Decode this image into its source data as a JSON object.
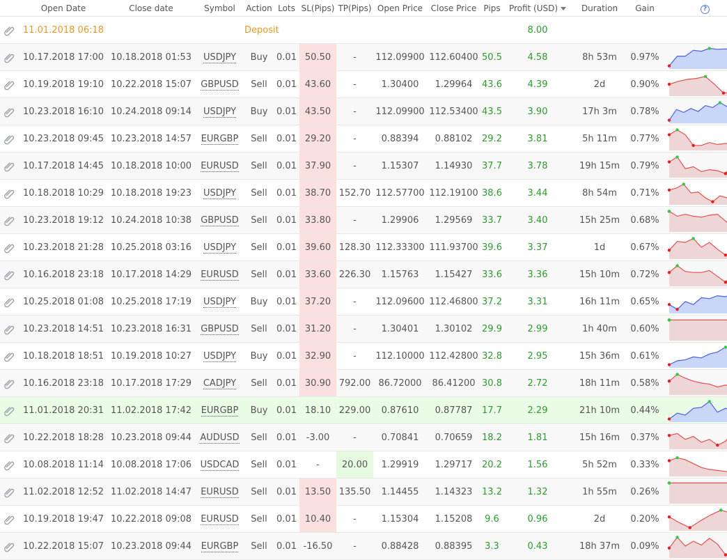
{
  "headers": {
    "open_date": "Open Date",
    "close_date": "Close date",
    "symbol": "Symbol",
    "action": "Action",
    "lots": "Lots",
    "sl": "SL(Pips)",
    "tp": "TP(Pips)",
    "open_price": "Open Price",
    "close_price": "Close Price",
    "pips": "Pips",
    "profit": "Profit (USD)",
    "duration": "Duration",
    "gain": "Gain",
    "help": "?"
  },
  "deposit": {
    "date": "11.01.2018 06:18",
    "action": "Deposit",
    "profit": "8.00"
  },
  "trades": [
    {
      "open": "10.17.2018 17:00",
      "close": "10.18.2018 01:53",
      "symbol": "USDJPY",
      "action": "Buy",
      "lots": "0.01",
      "sl": "50.50",
      "tp": "-",
      "op": "112.09900",
      "cp": "112.60400",
      "pips": "50.5",
      "profit": "4.58",
      "dur": "8h 53m",
      "gain": "0.97%",
      "spark": [
        0.05,
        0.55,
        0.55,
        0.85,
        0.8,
        0.95,
        0.9,
        0.92,
        0.88,
        0.88
      ],
      "color": "blue"
    },
    {
      "open": "10.19.2018 19:10",
      "close": "10.22.2018 15:07",
      "symbol": "GBPUSD",
      "action": "Sell",
      "lots": "0.01",
      "sl": "43.60",
      "tp": "-",
      "op": "1.30400",
      "cp": "1.29964",
      "pips": "43.6",
      "profit": "4.39",
      "dur": "2d",
      "gain": "0.90%",
      "spark": [
        0.5,
        0.65,
        0.75,
        0.8,
        0.9,
        0.5,
        0.05,
        0.1,
        0.15
      ],
      "color": "red"
    },
    {
      "open": "10.23.2018 16:10",
      "close": "10.24.2018 09:14",
      "symbol": "USDJPY",
      "action": "Buy",
      "lots": "0.01",
      "sl": "43.50",
      "tp": "-",
      "op": "112.09900",
      "cp": "112.53400",
      "pips": "43.5",
      "profit": "3.90",
      "dur": "17h 3m",
      "gain": "0.78%",
      "spark": [
        0.05,
        0.6,
        0.45,
        0.65,
        0.5,
        0.8,
        0.7,
        0.95,
        0.75,
        0.75,
        0.75
      ],
      "color": "blue"
    },
    {
      "open": "10.23.2018 09:45",
      "close": "10.23.2018 14:57",
      "symbol": "EURGBP",
      "action": "Sell",
      "lots": "0.01",
      "sl": "29.20",
      "tp": "-",
      "op": "0.88394",
      "cp": "0.88102",
      "pips": "29.2",
      "profit": "3.81",
      "dur": "5h 11m",
      "gain": "0.77%",
      "spark": [
        0.7,
        0.95,
        0.7,
        0.15,
        0.15,
        0.3,
        0.2,
        0.25,
        0.25,
        0.25
      ],
      "color": "red"
    },
    {
      "open": "10.17.2018 14:45",
      "close": "10.18.2018 10:00",
      "symbol": "EURUSD",
      "action": "Sell",
      "lots": "0.01",
      "sl": "37.90",
      "tp": "-",
      "op": "1.15307",
      "cp": "1.14930",
      "pips": "37.7",
      "profit": "3.78",
      "dur": "19h 15m",
      "gain": "0.79%",
      "spark": [
        0.7,
        0.95,
        0.35,
        0.45,
        0.2,
        0.3,
        0.25,
        0.1,
        0.7,
        0.1
      ],
      "color": "red"
    },
    {
      "open": "10.18.2018 10:29",
      "close": "10.18.2018 19:23",
      "symbol": "USDJPY",
      "action": "Sell",
      "lots": "0.01",
      "sl": "38.70",
      "tp": "152.70",
      "op": "112.57700",
      "cp": "112.19100",
      "pips": "38.6",
      "profit": "3.44",
      "dur": "8h 54m",
      "gain": "0.71%",
      "spark": [
        0.65,
        0.75,
        0.95,
        0.5,
        0.55,
        0.25,
        0.05,
        0.35,
        0.25,
        0.3,
        0.3
      ],
      "color": "red"
    },
    {
      "open": "10.23.2018 19:12",
      "close": "10.24.2018 10:38",
      "symbol": "GBPUSD",
      "action": "Sell",
      "lots": "0.01",
      "sl": "33.80",
      "tp": "-",
      "op": "1.29906",
      "cp": "1.29569",
      "pips": "33.7",
      "profit": "3.40",
      "dur": "15h 25m",
      "gain": "0.68%",
      "spark": [
        0.95,
        0.7,
        0.8,
        0.7,
        0.65,
        0.75,
        0.8,
        0.45,
        0.1,
        0.4
      ],
      "color": "red"
    },
    {
      "open": "10.23.2018 21:28",
      "close": "10.25.2018 03:16",
      "symbol": "USDJPY",
      "action": "Sell",
      "lots": "0.01",
      "sl": "39.60",
      "tp": "128.30",
      "op": "112.33300",
      "cp": "111.93700",
      "pips": "39.6",
      "profit": "3.37",
      "dur": "1d",
      "gain": "0.67%",
      "spark": [
        0.35,
        0.8,
        0.75,
        0.95,
        0.5,
        0.75,
        0.4,
        0.1,
        0.15,
        0.2
      ],
      "color": "red"
    },
    {
      "open": "10.16.2018 23:18",
      "close": "10.17.2018 14:29",
      "symbol": "EURUSD",
      "action": "Sell",
      "lots": "0.01",
      "sl": "33.60",
      "tp": "226.30",
      "op": "1.15763",
      "cp": "1.15427",
      "pips": "33.6",
      "profit": "3.36",
      "dur": "15h 10m",
      "gain": "0.72%",
      "spark": [
        0.6,
        0.95,
        0.65,
        0.6,
        0.6,
        0.7,
        0.4,
        0.1,
        0.6,
        0.55
      ],
      "color": "red"
    },
    {
      "open": "10.25.2018 01:08",
      "close": "10.25.2018 17:19",
      "symbol": "USDJPY",
      "action": "Buy",
      "lots": "0.01",
      "sl": "37.20",
      "tp": "-",
      "op": "112.09600",
      "cp": "112.46800",
      "pips": "37.2",
      "profit": "3.31",
      "dur": "16h 11m",
      "gain": "0.65%",
      "spark": [
        0.35,
        0.1,
        0.5,
        0.35,
        0.7,
        0.65,
        0.8,
        0.75,
        0.95,
        0.7
      ],
      "color": "blue"
    },
    {
      "open": "10.23.2018 14:51",
      "close": "10.23.2018 16:31",
      "symbol": "GBPUSD",
      "action": "Sell",
      "lots": "0.01",
      "sl": "31.20",
      "tp": "-",
      "op": "1.30401",
      "cp": "1.30102",
      "pips": "29.9",
      "profit": "2.99",
      "dur": "1h 40m",
      "gain": "0.60%",
      "spark": [
        0.95,
        0.95,
        0.95,
        0.95,
        0.95,
        0.95,
        0.95,
        0.95,
        0.95,
        0.05
      ],
      "color": "red"
    },
    {
      "open": "10.18.2018 18:51",
      "close": "10.19.2018 10:27",
      "symbol": "USDJPY",
      "action": "Buy",
      "lots": "0.01",
      "sl": "32.90",
      "tp": "-",
      "op": "112.10000",
      "cp": "112.42800",
      "pips": "32.8",
      "profit": "2.95",
      "dur": "15h 36m",
      "gain": "0.61%",
      "spark": [
        0.05,
        0.25,
        0.3,
        0.45,
        0.4,
        0.6,
        0.7,
        0.95,
        0.85,
        0.85
      ],
      "color": "blue"
    },
    {
      "open": "10.16.2018 23:18",
      "close": "10.17.2018 17:29",
      "symbol": "CADJPY",
      "action": "Sell",
      "lots": "0.01",
      "sl": "30.90",
      "tp": "792.00",
      "op": "86.72000",
      "cp": "86.41200",
      "pips": "30.8",
      "profit": "2.72",
      "dur": "18h 11m",
      "gain": "0.58%",
      "spark": [
        0.6,
        0.95,
        0.75,
        0.6,
        0.5,
        0.45,
        0.3,
        0.4,
        0.3,
        0.15
      ],
      "color": "red"
    },
    {
      "open": "11.01.2018 20:31",
      "close": "11.02.2018 17:42",
      "symbol": "EURGBP",
      "action": "Buy",
      "lots": "0.01",
      "sl": "18.10",
      "tp": "229.00",
      "op": "0.87610",
      "cp": "0.87787",
      "pips": "17.7",
      "profit": "2.29",
      "dur": "21h 10m",
      "gain": "0.44%",
      "spark": [
        0.05,
        0.35,
        0.25,
        0.6,
        0.65,
        0.95,
        0.4,
        0.6,
        0.45,
        0.6
      ],
      "color": "blue",
      "highlight": true
    },
    {
      "open": "10.22.2018 18:28",
      "close": "10.23.2018 09:44",
      "symbol": "AUDUSD",
      "action": "Sell",
      "lots": "0.01",
      "sl": "-3.00",
      "tp": "-",
      "op": "0.70841",
      "cp": "0.70659",
      "pips": "18.2",
      "profit": "1.81",
      "dur": "15h 16m",
      "gain": "0.37%",
      "spark": [
        0.6,
        0.7,
        0.4,
        0.55,
        0.25,
        0.4,
        0.1,
        0.3,
        0.85,
        0.2
      ],
      "color": "red",
      "sl_plain": true
    },
    {
      "open": "10.08.2018 11:14",
      "close": "10.08.2018 17:06",
      "symbol": "USDCAD",
      "action": "Sell",
      "lots": "0.01",
      "sl": "-",
      "tp": "20.00",
      "op": "1.29919",
      "cp": "1.29717",
      "pips": "20.2",
      "profit": "1.56",
      "dur": "5h 52m",
      "gain": "0.33%",
      "spark": [
        0.7,
        0.85,
        0.75,
        0.55,
        0.35,
        0.25,
        0.2,
        0.15,
        0.05,
        0.15
      ],
      "color": "red",
      "sl_plain": true,
      "tp_on": true
    },
    {
      "open": "11.02.2018 12:52",
      "close": "11.02.2018 14:47",
      "symbol": "EURUSD",
      "action": "Sell",
      "lots": "0.01",
      "sl": "13.50",
      "tp": "135.50",
      "op": "1.14455",
      "cp": "1.14323",
      "pips": "13.2",
      "profit": "1.32",
      "dur": "1h 55m",
      "gain": "0.26%",
      "spark": [
        0.95,
        0.95,
        0.95,
        0.95,
        0.95,
        0.95,
        0.95,
        0.95,
        0.95,
        0.05
      ],
      "color": "red"
    },
    {
      "open": "10.19.2018 19:47",
      "close": "10.22.2018 09:08",
      "symbol": "EURUSD",
      "action": "Sell",
      "lots": "0.01",
      "sl": "10.40",
      "tp": "-",
      "op": "1.15304",
      "cp": "1.15208",
      "pips": "9.6",
      "profit": "0.96",
      "dur": "2d",
      "gain": "0.20%",
      "spark": [
        0.6,
        0.3,
        0.05,
        0.4,
        0.7,
        0.95,
        0.8,
        0.65
      ],
      "color": "red"
    },
    {
      "open": "10.22.2018 15:07",
      "close": "10.23.2018 09:44",
      "symbol": "EURGBP",
      "action": "Sell",
      "lots": "0.01",
      "sl": "-16.50",
      "tp": "-",
      "op": "0.88428",
      "cp": "0.88395",
      "pips": "3.3",
      "profit": "0.43",
      "dur": "18h 37m",
      "gain": "0.09%",
      "spark": [
        0.4,
        0.95,
        0.5,
        0.75,
        0.55,
        0.9,
        0.6,
        0.05,
        0.3,
        0.85
      ],
      "color": "red",
      "sl_plain": true
    }
  ],
  "colors": {
    "positive": "#2e9a2e",
    "deposit": "#e49b21",
    "sl_bg": "#fbe0e0",
    "tp_bg": "#e6fae0",
    "highlight_bg": "#eafbe6",
    "spark_blue_line": "#4a5fe0",
    "spark_blue_fill": "#c9d6f7",
    "spark_red_line": "#e05050",
    "spark_red_fill": "#efd6d6"
  },
  "icons": {
    "row": "paperclip-icon",
    "help": "help-icon",
    "sort": "sort-desc-icon"
  }
}
